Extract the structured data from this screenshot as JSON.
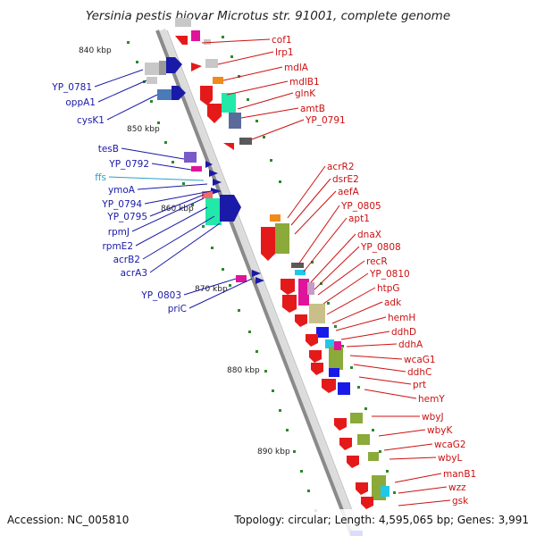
{
  "title": "Yersinia pestis biovar Microtus str. 91001, complete genome",
  "footer": {
    "accession": "Accession: NC_005810",
    "summary": "Topology: circular; Length: 4,595,065 bp; Genes: 3,991"
  },
  "scale_labels": [
    "840 kbp",
    "850 kbp",
    "860 kbp",
    "870 kbp",
    "880 kbp",
    "890 kbp"
  ],
  "left_labels": [
    {
      "text": "YP_0781",
      "color": "#1a1aa8"
    },
    {
      "text": "oppA1",
      "color": "#1a1aa8"
    },
    {
      "text": "cysK1",
      "color": "#1a1aa8"
    },
    {
      "text": "tesB",
      "color": "#1a1aa8"
    },
    {
      "text": "YP_0792",
      "color": "#1a1aa8"
    },
    {
      "text": "ffs",
      "color": "#2aa0c8"
    },
    {
      "text": "ymoA",
      "color": "#1a1aa8"
    },
    {
      "text": "YP_0794",
      "color": "#1a1aa8"
    },
    {
      "text": "YP_0795",
      "color": "#1a1aa8"
    },
    {
      "text": "rpmJ",
      "color": "#1a1aa8"
    },
    {
      "text": "rpmE2",
      "color": "#1a1aa8"
    },
    {
      "text": "acrB2",
      "color": "#1a1aa8"
    },
    {
      "text": "acrA3",
      "color": "#1a1aa8"
    },
    {
      "text": "YP_0803",
      "color": "#1a1aa8"
    },
    {
      "text": "priC",
      "color": "#1a1aa8"
    }
  ],
  "right_labels": [
    "cof1",
    "lrp1",
    "mdlA",
    "mdlB1",
    "glnK",
    "amtB",
    "YP_0791",
    "acrR2",
    "dsrE2",
    "aefA",
    "YP_0805",
    "apt1",
    "dnaX",
    "YP_0808",
    "recR",
    "YP_0810",
    "htpG",
    "adk",
    "hemH",
    "ddhD",
    "ddhA",
    "wcaG1",
    "ddhC",
    "prt",
    "hemY",
    "wbyJ",
    "wbyK",
    "wcaG2",
    "wbyL",
    "manB1",
    "wzz",
    "gsk"
  ],
  "colors": {
    "backbone": "#8a8a8a",
    "forward_strand": "#1a1aa8",
    "reverse_strand": "#cc1111",
    "rna": "#2aa0c8",
    "tick": "#2a8a2a"
  }
}
